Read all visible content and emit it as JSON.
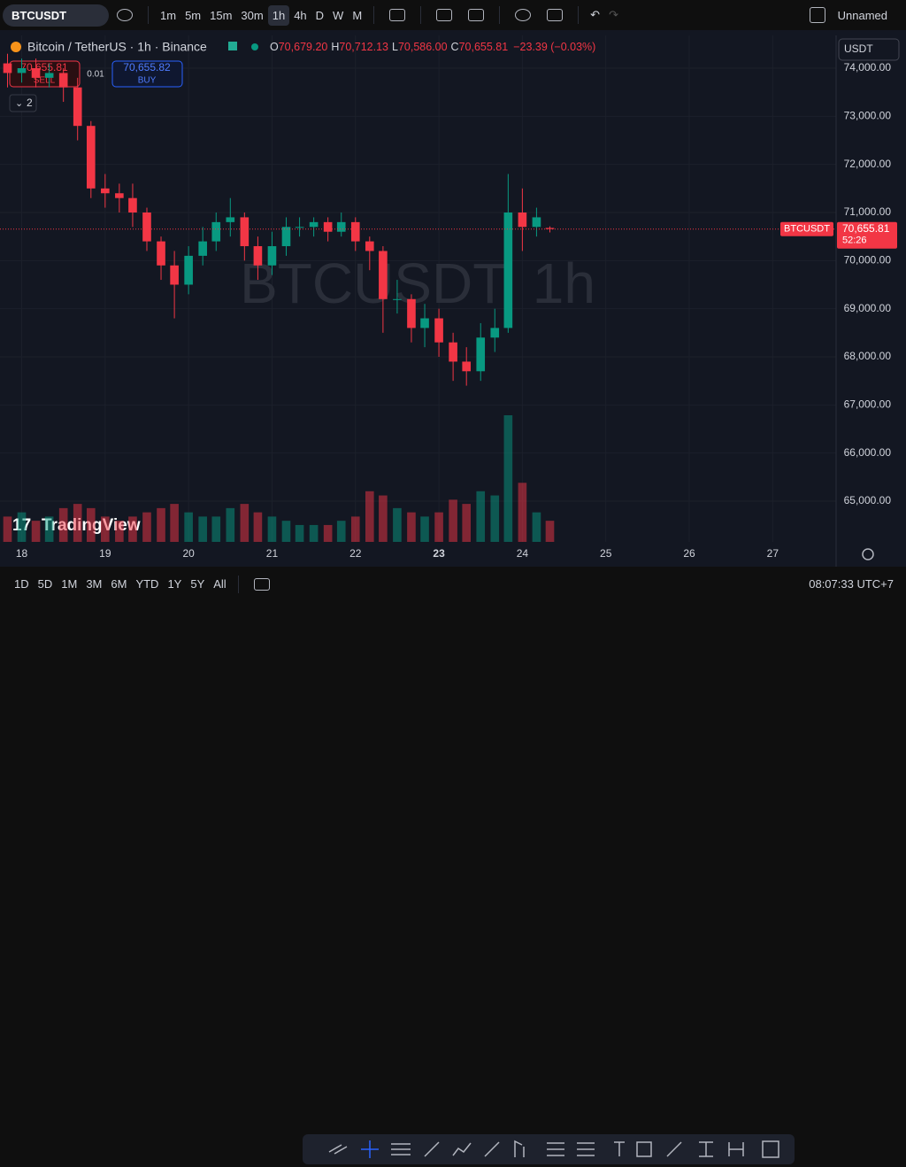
{
  "toolbar": {
    "symbol": "BTCUSDT",
    "intervals": [
      "1m",
      "5m",
      "15m",
      "30m",
      "1h",
      "4h",
      "D",
      "W",
      "M"
    ],
    "layout_name": "Unnamed"
  },
  "legend": {
    "title": "Bitcoin / TetherUS · 1h · Binance",
    "ohlc": [
      {
        "label": "O",
        "value": "70,679.20"
      },
      {
        "label": "H",
        "value": "70,712.13"
      },
      {
        "label": "L",
        "value": "70,586.00"
      },
      {
        "label": "C",
        "value": "70,655.81"
      }
    ],
    "change": "−23.39 (−0.03%)",
    "sell_price": "70,655.81",
    "sell": "SELL",
    "spread": "0.01",
    "buy_price": "70,655.82",
    "buy": "BUY",
    "collapsed_count": "2"
  },
  "currency": "USDT",
  "watermark": "BTCUSDT, 1h",
  "brand": "TradingView",
  "chart_data": {
    "type": "candlestick",
    "x": [
      17.83,
      18.0,
      18.17,
      18.33,
      18.5,
      18.67,
      18.83,
      19.0,
      19.17,
      19.33,
      19.5,
      19.67,
      19.83,
      20.0,
      20.17,
      20.33,
      20.5,
      20.67,
      20.83,
      21.0,
      21.17,
      21.33,
      21.5,
      21.67,
      21.83,
      22.0,
      22.17,
      22.33,
      22.5,
      22.67,
      22.83,
      23.0,
      23.17,
      23.33,
      23.5,
      23.67,
      23.83,
      24.0,
      24.17,
      24.33
    ],
    "open": [
      74100,
      73900,
      74000,
      73800,
      73900,
      73600,
      72800,
      71500,
      71400,
      71300,
      71000,
      70400,
      69900,
      69500,
      70100,
      70400,
      70800,
      70900,
      70300,
      69900,
      70300,
      70700,
      70700,
      70800,
      70600,
      70800,
      70400,
      70200,
      69200,
      69200,
      68600,
      68800,
      68300,
      67900,
      67700,
      68400,
      68600,
      71000,
      70700,
      70679.2
    ],
    "high": [
      74300,
      74200,
      74200,
      74100,
      74000,
      73800,
      72900,
      71800,
      71600,
      71600,
      71100,
      70500,
      70200,
      70300,
      70700,
      71000,
      71300,
      71000,
      70500,
      70600,
      70900,
      70900,
      70900,
      70900,
      71000,
      70900,
      70500,
      70300,
      69600,
      69300,
      69100,
      69000,
      68500,
      68200,
      68700,
      69000,
      71800,
      71500,
      71100,
      70712.13
    ],
    "low": [
      73600,
      73700,
      73600,
      73600,
      73300,
      72500,
      71300,
      71100,
      71000,
      70700,
      70200,
      69600,
      68800,
      69300,
      69900,
      70200,
      70500,
      70000,
      69600,
      69700,
      70100,
      70500,
      70500,
      70400,
      70500,
      70200,
      69800,
      68500,
      68900,
      68300,
      68200,
      68000,
      67500,
      67400,
      67500,
      68100,
      68500,
      70200,
      70500,
      70586
    ],
    "close": [
      73900,
      74000,
      73800,
      73900,
      73600,
      72800,
      71500,
      71400,
      71300,
      71000,
      70400,
      69900,
      69500,
      70100,
      70400,
      70800,
      70900,
      70300,
      69900,
      70300,
      70700,
      70700,
      70800,
      70600,
      70800,
      70400,
      70200,
      69200,
      69200,
      68600,
      68800,
      68300,
      67900,
      67700,
      68400,
      68600,
      71000,
      70700,
      70900,
      70655.81
    ],
    "volume": [
      30,
      35,
      25,
      30,
      40,
      45,
      40,
      30,
      25,
      30,
      35,
      40,
      45,
      35,
      30,
      30,
      40,
      45,
      35,
      30,
      25,
      20,
      20,
      20,
      25,
      30,
      60,
      55,
      40,
      35,
      30,
      35,
      50,
      45,
      60,
      55,
      150,
      70,
      35,
      25
    ],
    "volume_lim": [
      0,
      600
    ],
    "up_color": "#089981",
    "down_color": "#f23645",
    "xlim": [
      17.74,
      27.76
    ],
    "xticks": [
      18,
      19,
      20,
      21,
      22,
      23,
      24,
      25,
      26,
      27
    ],
    "bold_xtick": 23,
    "ylim": [
      64153,
      74681
    ],
    "yticks": [
      {
        "value": 65000,
        "label": "65,000.00"
      },
      {
        "value": 66000,
        "label": "66,000.00"
      },
      {
        "value": 67000,
        "label": "67,000.00"
      },
      {
        "value": 68000,
        "label": "68,000.00"
      },
      {
        "value": 69000,
        "label": "69,000.00"
      },
      {
        "value": 70000,
        "label": "70,000.00"
      },
      {
        "value": 71000,
        "label": "71,000.00"
      },
      {
        "value": 72000,
        "label": "72,000.00"
      },
      {
        "value": 73000,
        "label": "73,000.00"
      },
      {
        "value": 74000,
        "label": "74,000.00"
      }
    ],
    "grid": true,
    "last_price": {
      "value": 70655.81,
      "label": "70,655.81",
      "symbol": "BTCUSDT",
      "countdown": "52:26"
    }
  },
  "bottom_bar": {
    "ranges": [
      "1D",
      "5D",
      "1M",
      "3M",
      "6M",
      "YTD",
      "1Y",
      "5Y",
      "All"
    ],
    "clock": "08:07:33 UTC+7"
  }
}
